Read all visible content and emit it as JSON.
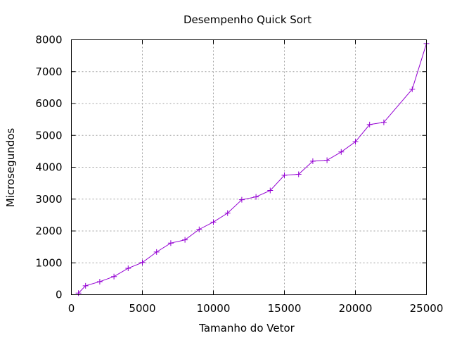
{
  "chart_data": {
    "type": "line",
    "title": "Desempenho Quick Sort",
    "xlabel": "Tamanho do Vetor",
    "ylabel": "Microsegundos",
    "xlim": [
      0,
      25000
    ],
    "ylim": [
      0,
      8000
    ],
    "xticks": [
      0,
      5000,
      10000,
      15000,
      20000,
      25000
    ],
    "yticks": [
      0,
      1000,
      2000,
      3000,
      4000,
      5000,
      6000,
      7000,
      8000
    ],
    "grid": true,
    "marker": "plus",
    "series_color": "#9400d3",
    "series": [
      {
        "x": [
          500,
          1000,
          2000,
          3000,
          4000,
          5000,
          6000,
          7000,
          8000,
          9000,
          10000,
          11000,
          12000,
          13000,
          14000,
          15000,
          16000,
          17000,
          18000,
          19000,
          20000,
          21000,
          22000,
          24000,
          25000
        ],
        "y": [
          50,
          280,
          410,
          570,
          830,
          1010,
          1340,
          1620,
          1720,
          2050,
          2280,
          2560,
          2980,
          3070,
          3270,
          3750,
          3780,
          4190,
          4220,
          4480,
          4800,
          5340,
          5410,
          6450,
          7880
        ]
      }
    ]
  }
}
